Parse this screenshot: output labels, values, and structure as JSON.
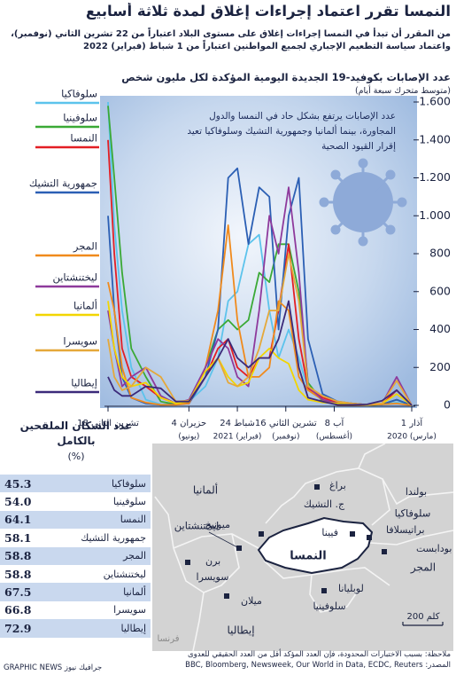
{
  "header": {
    "title": "النمسا تقرر اعتماد إجراءات إغلاق لمدة ثلاثة أسابيع",
    "subtitle": "من المقرر أن تبدأ في النمسا إجراءات إغلاق على مستوى البلاد اعتباراً من 22 تشرين الثاني (نوفمبر)، واعتماد سياسة التطعيم الإجباري لجميع المواطنين اعتباراً من 1 شباط (فبراير) 2022"
  },
  "chart_data": {
    "type": "line",
    "title": "عدد الإصابات بكوفيد-19 الجديدة اليومية المؤكدة لكل مليون شخص",
    "subtitle": "(متوسط متحرك سبعة أيام)",
    "annotation": "عدد الإصابات يرتفع بشكل حاد في النمسا والدول المجاورة، بينما ألمانيا وجمهورية التشيك وسلوفاكيا تعيد إقرار القيود الصحية",
    "x": [
      "2020-03-01",
      "2020-04-01",
      "2020-05-01",
      "2020-06-01",
      "2020-07-01",
      "2020-08-01",
      "2020-09-01",
      "2020-10-01",
      "2020-10-20",
      "2020-11-10",
      "2020-12-01",
      "2020-12-20",
      "2021-01-10",
      "2021-02-01",
      "2021-02-24",
      "2021-03-15",
      "2021-04-05",
      "2021-05-01",
      "2021-06-04",
      "2021-07-01",
      "2021-08-01",
      "2021-09-01",
      "2021-10-01",
      "2021-10-20",
      "2021-11-05",
      "2021-11-18"
    ],
    "series": [
      {
        "name": "سلوفاكيا",
        "color": "#5cc3ec",
        "values": [
          0,
          15,
          3,
          1,
          3,
          10,
          30,
          80,
          250,
          400,
          250,
          500,
          900,
          850,
          600,
          550,
          250,
          100,
          20,
          5,
          5,
          30,
          200,
          500,
          950,
          1600
        ]
      },
      {
        "name": "سلوفينيا",
        "color": "#3aa935",
        "values": [
          0,
          30,
          5,
          1,
          8,
          10,
          20,
          120,
          600,
          850,
          850,
          650,
          700,
          450,
          400,
          450,
          400,
          200,
          20,
          5,
          20,
          150,
          300,
          700,
          1200,
          1580
        ]
      },
      {
        "name": "النمسا",
        "color": "#e31e24",
        "values": [
          0,
          80,
          5,
          3,
          10,
          15,
          40,
          90,
          350,
          850,
          500,
          250,
          250,
          150,
          200,
          350,
          300,
          150,
          10,
          10,
          40,
          100,
          150,
          300,
          800,
          1400
        ]
      },
      {
        "name": "جمهورية التشيك",
        "color": "#2b5fb4",
        "values": [
          0,
          30,
          5,
          3,
          10,
          20,
          60,
          350,
          1200,
          1000,
          400,
          1100,
          1150,
          850,
          1250,
          1200,
          400,
          150,
          10,
          5,
          3,
          10,
          40,
          150,
          500,
          1000
        ]
      },
      {
        "name": "المجر",
        "color": "#f08a1c",
        "values": [
          0,
          10,
          5,
          2,
          2,
          2,
          30,
          80,
          150,
          500,
          550,
          200,
          150,
          150,
          450,
          950,
          500,
          200,
          10,
          3,
          3,
          15,
          40,
          200,
          500,
          650
        ]
      },
      {
        "name": "ليختنشتاين",
        "color": "#8e3a9c",
        "values": [
          0,
          150,
          10,
          5,
          5,
          10,
          30,
          100,
          700,
          1150,
          800,
          1000,
          500,
          100,
          150,
          300,
          350,
          200,
          30,
          10,
          50,
          200,
          150,
          100,
          300,
          500
        ]
      },
      {
        "name": "ألمانيا",
        "color": "#f2d500",
        "values": [
          0,
          60,
          10,
          5,
          5,
          10,
          15,
          30,
          80,
          220,
          250,
          300,
          250,
          120,
          100,
          150,
          250,
          180,
          20,
          10,
          40,
          120,
          100,
          150,
          300,
          550
        ]
      },
      {
        "name": "سويسرا",
        "color": "#e5a83a",
        "values": [
          0,
          130,
          10,
          3,
          10,
          20,
          50,
          100,
          550,
          800,
          500,
          500,
          300,
          150,
          100,
          120,
          250,
          150,
          25,
          20,
          150,
          200,
          100,
          80,
          150,
          350
        ]
      },
      {
        "name": "إيطاليا",
        "color": "#3b2a7a",
        "values": [
          0,
          80,
          25,
          5,
          3,
          3,
          20,
          40,
          200,
          550,
          350,
          250,
          250,
          200,
          250,
          350,
          250,
          150,
          20,
          20,
          90,
          100,
          50,
          50,
          80,
          150
        ]
      }
    ],
    "xlim": [
      "2020-03-01",
      "2021-11-18"
    ],
    "x_reversed": true,
    "xticks": [
      {
        "value": "2020-03-01",
        "label": "1 آذار",
        "sub": "2020 (مارس)"
      },
      {
        "value": "2020-08-08",
        "label": "8 آب",
        "sub": "(أغسطس)"
      },
      {
        "value": "2020-11-16",
        "label": "16 تشرين الثاني",
        "sub": "(نوفمبر)"
      },
      {
        "value": "2021-02-24",
        "label": "24 شباط",
        "sub": "2021 (فبراير)"
      },
      {
        "value": "2021-06-04",
        "label": "4 حزيران",
        "sub": "(يونيو)"
      },
      {
        "value": "2021-11-18",
        "label": "18 تشرين الثاني"
      }
    ],
    "ylim": [
      0,
      1600
    ],
    "yticks": [
      0,
      200,
      400,
      600,
      800,
      {
        "value": 1000,
        "label": "1.000"
      },
      {
        "value": 1200,
        "label": "1.200"
      },
      {
        "value": 1400,
        "label": "1.400"
      },
      {
        "value": 1600,
        "label": "1.600"
      }
    ],
    "grid": false
  },
  "vaccination": {
    "title": "عدد السكان الملقحين بالكامل",
    "unit": "(%)",
    "rows": [
      [
        "سلوفاكيا",
        "45.3"
      ],
      [
        "سلوفينيا",
        "54.0"
      ],
      [
        "النمسا",
        "64.1"
      ],
      [
        "جمهورية التشيك",
        "58.1"
      ],
      [
        "المجر",
        "58.8"
      ],
      [
        "ليختنشتاين",
        "58.8"
      ],
      [
        "ألمانيا",
        "67.5"
      ],
      [
        "سويسرا",
        "66.8"
      ],
      [
        "إيطاليا",
        "72.9"
      ]
    ]
  },
  "map": {
    "countries": [
      "بولندا",
      "ألمانيا",
      "ج. التشيك",
      "سلوفاكيا",
      "النمسا",
      "المجر",
      "ليختنشتاين",
      "سويسرا",
      "سلوفينيا",
      "إيطاليا",
      "فرنسا"
    ],
    "cities": [
      "براغ",
      "ميونيخ",
      "براتيسلافا",
      "فيينا",
      "بودابست",
      "برن",
      "لوبليانا",
      "ميلان"
    ],
    "scale": "200 كلم"
  },
  "footer": {
    "note": "ملاحظة: بسبب الاختبارات المحدودة، فإن العدد المؤكد أقل من العدد الحقيقي للعدوى",
    "source": "المصدر: BBC, Bloomberg, Newsweek, Our World in Data, ECDC, Reuters",
    "credit": "GRAPHIC NEWS جرافيك نيوز"
  }
}
